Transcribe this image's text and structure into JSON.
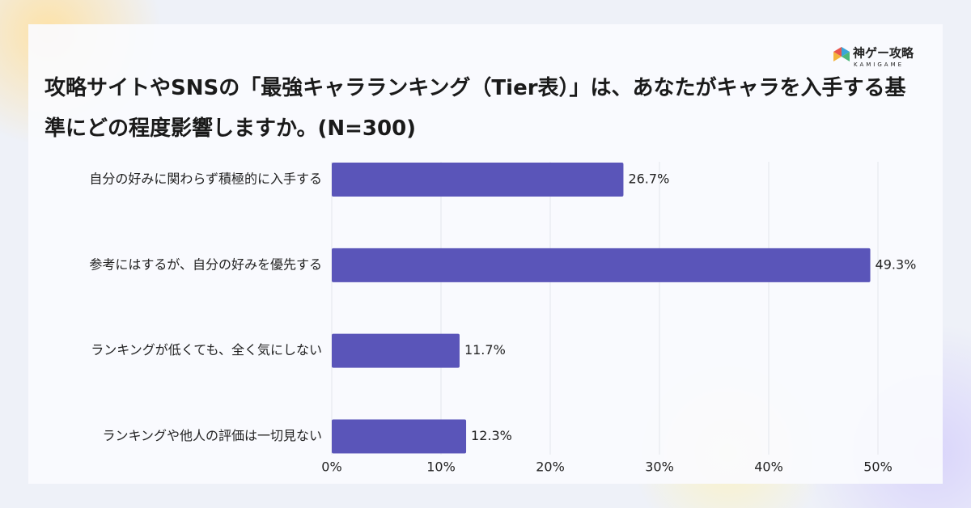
{
  "logo": {
    "name": "神ゲー攻略",
    "subtitle": "KAMIGAME"
  },
  "chart_data": {
    "type": "bar",
    "orientation": "horizontal",
    "title": "攻略サイトやSNSの「最強キャラランキング（Tier表）」は、あなたがキャラを入手する基準にどの程度影響しますか。(N=300)",
    "categories": [
      "自分の好みに関わらず積極的に入手する",
      "参考にはするが、自分の好みを優先する",
      "ランキングが低くても、全く気にしない",
      "ランキングや他人の評価は一切見ない"
    ],
    "values": [
      26.7,
      49.3,
      11.7,
      12.3
    ],
    "value_labels": [
      "26.7%",
      "49.3%",
      "11.7%",
      "12.3%"
    ],
    "color": "#5a55b9",
    "xlim": [
      0,
      50
    ],
    "xticks": [
      {
        "value": 0,
        "label": "0%"
      },
      {
        "value": 10,
        "label": "10%"
      },
      {
        "value": 20,
        "label": "20%"
      },
      {
        "value": 30,
        "label": "30%"
      },
      {
        "value": 40,
        "label": "40%"
      },
      {
        "value": 50,
        "label": "50%"
      }
    ],
    "grid": true
  }
}
